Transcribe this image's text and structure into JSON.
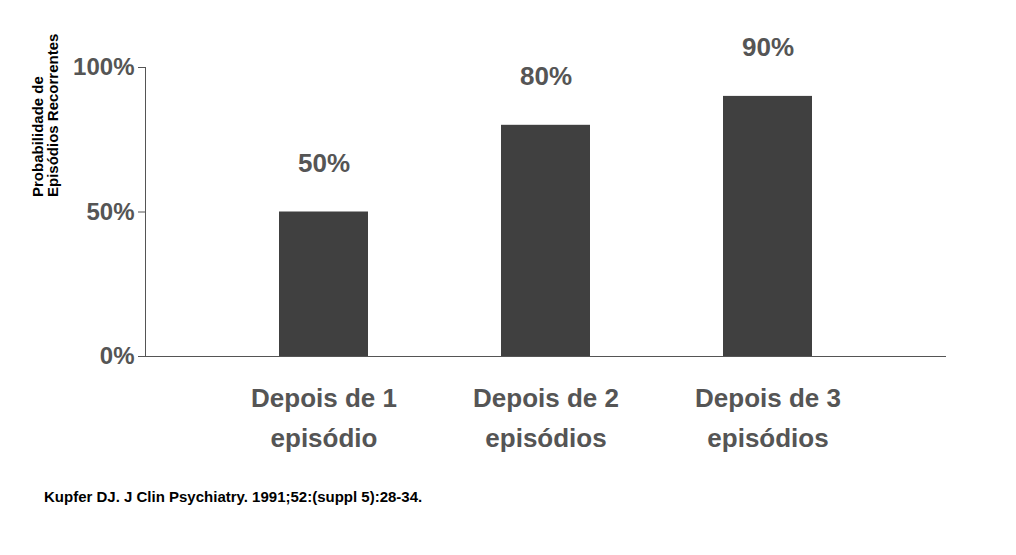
{
  "chart_data": {
    "type": "bar",
    "categories": [
      "Depois de 1\nepisódio",
      "Depois de 2\nepisódios",
      "Depois de 3\nepisódios"
    ],
    "values": [
      50,
      80,
      90
    ],
    "value_labels": [
      "50%",
      "80%",
      "90%"
    ],
    "data_labels": true,
    "color": "#404040",
    "ylabel": "Probabilidade de\nEpisódios Recorrentes",
    "ylim": [
      0,
      100
    ],
    "yticks": [
      {
        "value": 0,
        "label": "0%"
      },
      {
        "value": 50,
        "label": "50%"
      },
      {
        "value": 100,
        "label": "100%"
      }
    ],
    "grid": false,
    "caption": "Kupfer DJ. J Clin Psychiatry. 1991;52:(suppl 5):28-34."
  }
}
